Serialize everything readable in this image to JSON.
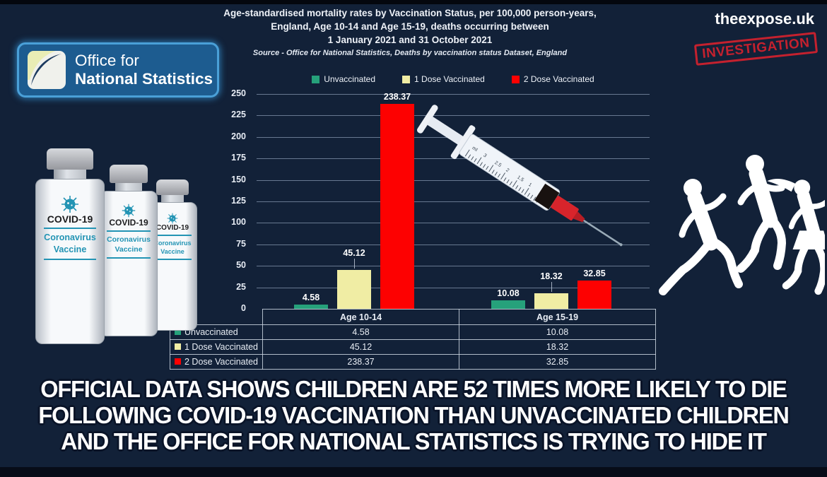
{
  "header": {
    "title_line1": "Age-standardised mortality rates by Vaccination Status, per 100,000 person-years,",
    "title_line2": "England, Age 10-14 and Age 15-19, deaths occurring between",
    "title_line3": "1 January 2021 and 31 October 2021",
    "source": "Source - Office for National Statistics, Deaths by vaccination status Dataset, England"
  },
  "branding": {
    "site": "theexpose.uk",
    "stamp": "INVESTIGATION",
    "ons_line1": "Office for",
    "ons_line2": "National Statistics"
  },
  "vials": {
    "label_title": "COVID-19",
    "line1": "Coronavirus",
    "line2": "Vaccine"
  },
  "chart_data": {
    "type": "bar",
    "title": "Age-standardised mortality rates by Vaccination Status, per 100,000 person-years, England, Age 10-14 and Age 15-19, deaths occurring between 1 January 2021 and 31 October 2021",
    "categories": [
      "Age 10-14",
      "Age 15-19"
    ],
    "series": [
      {
        "name": "Unvaccinated",
        "color": "#26a17b",
        "values": [
          4.58,
          10.08
        ]
      },
      {
        "name": "1 Dose Vaccinated",
        "color": "#f0eda4",
        "values": [
          45.12,
          18.32
        ]
      },
      {
        "name": "2 Dose Vaccinated",
        "color": "#fd0101",
        "values": [
          238.37,
          32.85
        ]
      }
    ],
    "ylim": [
      0,
      250
    ],
    "yticks": [
      0,
      25,
      50,
      75,
      100,
      125,
      150,
      175,
      200,
      225,
      250
    ],
    "grid": true,
    "legend_position": "top",
    "xlabel": "",
    "ylabel": ""
  },
  "caption": {
    "line1": "OFFICIAL DATA SHOWS CHILDREN ARE 52 TIMES MORE LIKELY TO DIE",
    "line2": "FOLLOWING COVID-19 VACCINATION THAN UNVACCINATED CHILDREN",
    "line3": "AND THE OFFICE FOR NATIONAL STATISTICS IS TRYING TO HIDE IT"
  },
  "decorations": {
    "syringe_scale": [
      "ml",
      "3",
      "2.5",
      "2",
      "1.5",
      "1",
      "0.5"
    ],
    "colors": {
      "background": "#122138",
      "green_bar": "#26a17b",
      "yellow_bar": "#f0eda4",
      "red_bar": "#fd0101",
      "stamp_red": "#d2212e",
      "ons_blue": "#1d5c90",
      "ons_glow_blue": "#4aa0d8",
      "gridline": "#a0b2cc",
      "caption_outline": "#0a1428"
    }
  }
}
